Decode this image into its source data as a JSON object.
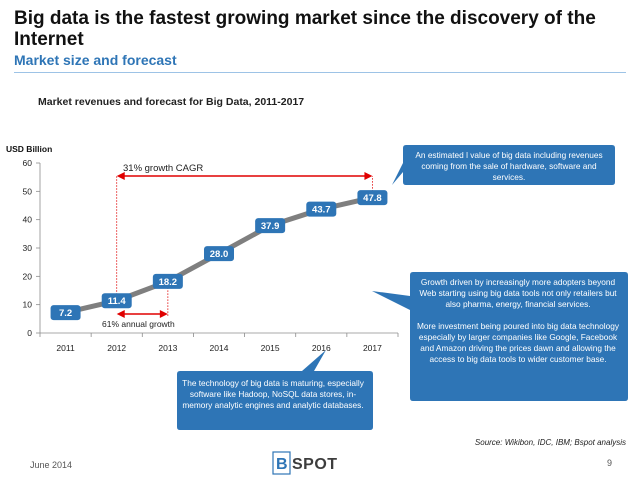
{
  "slide": {
    "title": "Big data is the fastest growing market since the discovery of the Internet",
    "subtitle": "Market size and forecast",
    "chart_title": "Market revenues and forecast for Big Data, 2011-2017",
    "source": "Source: Wikibon, IDC, IBM;  Bspot analysis",
    "date": "June 2014",
    "page_number": "9",
    "logo_text": "BSPOT"
  },
  "annotations": {
    "cagr": "31% growth CAGR",
    "annual": "61% annual growth"
  },
  "callouts": {
    "value": "An estimated l value of big data including revenues coming from the sale of hardware, software and services.",
    "growth": [
      "Growth driven by increasingly more adopters beyond Web  starting using big data tools not only retailers but also pharma, energy, financial services.",
      "More investment being poured into big data technology especially by larger companies like Google, Facebook and Amazon driving the prices dawn and allowing the access to big data tools to wider customer base."
    ],
    "technology": "The technology of big data is maturing, especially software like  Hadoop, NoSQL data stores, in-memory analytic engines and analytic databases."
  },
  "chart_data": {
    "type": "line",
    "title": "Market revenues and forecast for Big Data, 2011-2017",
    "ylabel": "USD Billion",
    "xlabel": "",
    "categories": [
      "2011",
      "2012",
      "2013",
      "2014",
      "2015",
      "2016",
      "2017"
    ],
    "values": [
      7.2,
      11.4,
      18.2,
      28.0,
      37.9,
      43.7,
      47.8
    ],
    "labels": [
      "7.2",
      "11.4",
      "18.2",
      "28.0",
      "37.9",
      "43.7",
      "47.8"
    ],
    "ylim": [
      0,
      60
    ],
    "yticks": [
      "0",
      "10",
      "20",
      "30",
      "40",
      "50",
      "60"
    ],
    "yticks_values": [
      0,
      10,
      20,
      30,
      40,
      50,
      60
    ],
    "series_color": "#7f7f7f",
    "label_color": "#2e75b6",
    "arrow_color": "#e00000",
    "grid": false
  }
}
